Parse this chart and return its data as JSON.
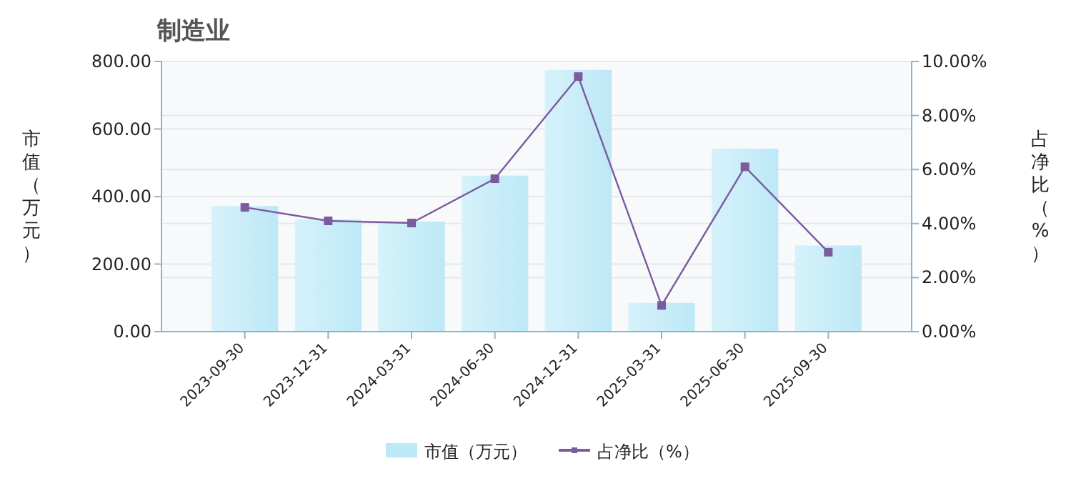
{
  "chart_data": {
    "type": "bar",
    "title": "制造业",
    "ylabel": "市值（万元）",
    "y2label": "占净比（%）",
    "categories": [
      "2023-09-30",
      "2023-12-31",
      "2024-03-31",
      "2024-06-30",
      "2024-12-31",
      "2025-03-31",
      "2025-06-30",
      "2025-09-30"
    ],
    "series": [
      {
        "name": "市值（万元）",
        "color": "#bde8f6",
        "values": [
          372,
          332,
          326,
          462,
          775,
          85,
          542,
          255
        ]
      },
      {
        "name": "占净比（%）",
        "type": "line",
        "axis": "y2",
        "color": "#7b5a9e",
        "marker": "square",
        "values": [
          4.6,
          4.1,
          4.02,
          5.66,
          9.44,
          0.97,
          6.1,
          2.94
        ]
      }
    ],
    "ylim": [
      0,
      800
    ],
    "yticks": [
      {
        "value": 0,
        "label": "0.00"
      },
      {
        "value": 200,
        "label": "200.00"
      },
      {
        "value": 400,
        "label": "400.00"
      },
      {
        "value": 600,
        "label": "600.00"
      },
      {
        "value": 800,
        "label": "800.00"
      }
    ],
    "y2lim": [
      0,
      10
    ],
    "y2ticks": [
      {
        "value": 0,
        "label": "0.00%"
      },
      {
        "value": 2,
        "label": "2.00%"
      },
      {
        "value": 4,
        "label": "4.00%"
      },
      {
        "value": 6,
        "label": "6.00%"
      },
      {
        "value": 8,
        "label": "8.00%"
      },
      {
        "value": 10,
        "label": "10.00%"
      }
    ],
    "grid": true,
    "legend": "bottom"
  }
}
